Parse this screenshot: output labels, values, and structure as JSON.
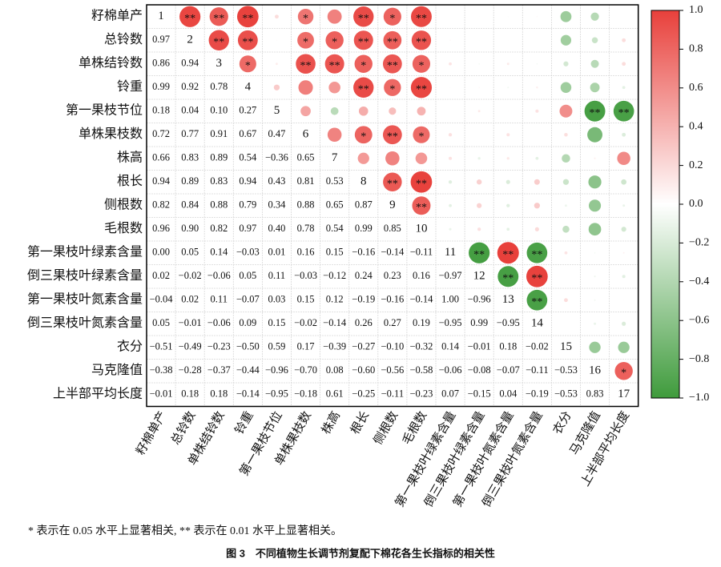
{
  "chart_data": {
    "type": "corrplot",
    "labels": [
      "籽棉单产",
      "总铃数",
      "单株结铃数",
      "铃重",
      "第一果枝节位",
      "单株果枝数",
      "株高",
      "根长",
      "侧根数",
      "毛根数",
      "第一果枝叶绿素含量",
      "倒三果枝叶绿素含量",
      "第一果枝叶氮素含量",
      "倒三果枝叶氮素含量",
      "衣分",
      "马克隆值",
      "上半部平均长度"
    ],
    "diagonal_labels": [
      1,
      2,
      3,
      4,
      5,
      6,
      7,
      8,
      9,
      10,
      11,
      12,
      13,
      14,
      15,
      16,
      17
    ],
    "values": [
      [
        0.97
      ],
      [
        0.86,
        0.94
      ],
      [
        0.99,
        0.92,
        0.78
      ],
      [
        0.18,
        0.04,
        0.1,
        0.27
      ],
      [
        0.72,
        0.77,
        0.91,
        0.67,
        0.47
      ],
      [
        0.66,
        0.83,
        0.89,
        0.54,
        -0.36,
        0.65
      ],
      [
        0.94,
        0.89,
        0.83,
        0.94,
        0.43,
        0.81,
        0.53
      ],
      [
        0.82,
        0.84,
        0.88,
        0.79,
        0.34,
        0.88,
        0.65,
        0.87
      ],
      [
        0.96,
        0.9,
        0.82,
        0.97,
        0.4,
        0.78,
        0.54,
        0.99,
        0.85
      ],
      [
        0.0,
        0.05,
        0.14,
        -0.03,
        0.01,
        0.16,
        0.15,
        -0.16,
        -0.14,
        -0.11
      ],
      [
        0.02,
        -0.02,
        -0.06,
        0.05,
        0.11,
        -0.03,
        -0.12,
        0.24,
        0.23,
        0.16,
        -0.97
      ],
      [
        -0.04,
        0.02,
        0.11,
        -0.07,
        0.03,
        0.15,
        0.12,
        -0.19,
        -0.16,
        -0.14,
        1.0,
        -0.96
      ],
      [
        0.05,
        -0.01,
        -0.06,
        0.09,
        0.15,
        -0.02,
        -0.14,
        0.26,
        0.27,
        0.19,
        -0.95,
        0.99,
        -0.95
      ],
      [
        -0.51,
        -0.49,
        -0.23,
        -0.5,
        0.59,
        0.17,
        -0.39,
        -0.27,
        -0.1,
        -0.32,
        0.14,
        -0.01,
        0.18,
        -0.02
      ],
      [
        -0.38,
        -0.28,
        -0.37,
        -0.44,
        -0.96,
        -0.7,
        0.08,
        -0.6,
        -0.56,
        -0.58,
        -0.06,
        -0.08,
        -0.07,
        -0.11,
        -0.53
      ],
      [
        -0.01,
        0.18,
        0.18,
        -0.14,
        -0.95,
        -0.18,
        0.61,
        -0.25,
        -0.11,
        -0.23,
        0.07,
        -0.15,
        0.04,
        -0.19,
        -0.53,
        0.83
      ]
    ],
    "value_labels": [
      [
        "0.97"
      ],
      [
        "0.86",
        "0.94"
      ],
      [
        "0.99",
        "0.92",
        "0.78"
      ],
      [
        "0.18",
        "0.04",
        "0.10",
        "0.27"
      ],
      [
        "0.72",
        "0.77",
        "0.91",
        "0.67",
        "0.47"
      ],
      [
        "0.66",
        "0.83",
        "0.89",
        "0.54",
        "−0.36",
        "0.65"
      ],
      [
        "0.94",
        "0.89",
        "0.83",
        "0.94",
        "0.43",
        "0.81",
        "0.53"
      ],
      [
        "0.82",
        "0.84",
        "0.88",
        "0.79",
        "0.34",
        "0.88",
        "0.65",
        "0.87"
      ],
      [
        "0.96",
        "0.90",
        "0.82",
        "0.97",
        "0.40",
        "0.78",
        "0.54",
        "0.99",
        "0.85"
      ],
      [
        "0.00",
        "0.05",
        "0.14",
        "−0.03",
        "0.01",
        "0.16",
        "0.15",
        "−0.16",
        "−0.14",
        "−0.11"
      ],
      [
        "0.02",
        "−0.02",
        "−0.06",
        "0.05",
        "0.11",
        "−0.03",
        "−0.12",
        "0.24",
        "0.23",
        "0.16",
        "−0.97"
      ],
      [
        "−0.04",
        "0.02",
        "0.11",
        "−0.07",
        "0.03",
        "0.15",
        "0.12",
        "−0.19",
        "−0.16",
        "−0.14",
        "1.00",
        "−0.96"
      ],
      [
        "0.05",
        "−0.01",
        "−0.06",
        "0.09",
        "0.15",
        "−0.02",
        "−0.14",
        "0.26",
        "0.27",
        "0.19",
        "−0.95",
        "0.99",
        "−0.95"
      ],
      [
        "−0.51",
        "−0.49",
        "−0.23",
        "−0.50",
        "0.59",
        "0.17",
        "−0.39",
        "−0.27",
        "−0.10",
        "−0.32",
        "0.14",
        "−0.01",
        "0.18",
        "−0.02"
      ],
      [
        "−0.38",
        "−0.28",
        "−0.37",
        "−0.44",
        "−0.96",
        "−0.70",
        "0.08",
        "−0.60",
        "−0.56",
        "−0.58",
        "−0.06",
        "−0.08",
        "−0.07",
        "−0.11",
        "−0.53"
      ],
      [
        "−0.01",
        "0.18",
        "0.18",
        "−0.14",
        "−0.95",
        "−0.18",
        "0.61",
        "−0.25",
        "−0.11",
        "−0.23",
        "0.07",
        "−0.15",
        "0.04",
        "−0.19",
        "−0.53",
        "0.83"
      ]
    ],
    "significance": [
      [
        "**",
        "**",
        "**",
        null,
        "*",
        null,
        "**",
        "*",
        "**",
        null,
        null,
        null,
        null,
        null,
        null,
        null
      ],
      [
        "**",
        "**",
        null,
        "*",
        "*",
        "**",
        "**",
        "**",
        null,
        null,
        null,
        null,
        null,
        null,
        null
      ],
      [
        "*",
        null,
        "**",
        "**",
        "*",
        "**",
        "*",
        null,
        null,
        null,
        null,
        null,
        null,
        null
      ],
      [
        null,
        null,
        null,
        "**",
        "*",
        "**",
        null,
        null,
        null,
        null,
        null,
        null,
        null
      ],
      [
        null,
        null,
        null,
        null,
        null,
        null,
        null,
        null,
        null,
        null,
        "**",
        "**"
      ],
      [
        null,
        "*",
        "**",
        "*",
        null,
        null,
        null,
        null,
        null,
        null,
        null
      ],
      [
        null,
        null,
        null,
        null,
        null,
        null,
        null,
        null,
        null,
        null
      ],
      [
        "**",
        "**",
        null,
        null,
        null,
        null,
        null,
        null,
        null
      ],
      [
        "**",
        null,
        null,
        null,
        null,
        null,
        null,
        null
      ],
      [
        null,
        null,
        null,
        null,
        null,
        null,
        null
      ],
      [
        "**",
        "**",
        "**",
        null,
        null,
        null
      ],
      [
        "**",
        "**",
        null,
        null,
        null
      ],
      [
        "**",
        null,
        null,
        null
      ],
      [
        null,
        null,
        null
      ],
      [
        null,
        null
      ],
      [
        "*"
      ]
    ],
    "colors": {
      "positive": "#e8403b",
      "zero": "#ffffff",
      "negative": "#3f9b3c"
    },
    "colorbar_lim": [
      -1,
      1
    ],
    "colorbar_ticks": [
      {
        "value": 1,
        "label": "1.0"
      },
      {
        "value": 0.8,
        "label": "0.8"
      },
      {
        "value": 0.6,
        "label": "0.6"
      },
      {
        "value": 0.4,
        "label": "0.4"
      },
      {
        "value": 0.2,
        "label": "0.2"
      },
      {
        "value": 0,
        "label": "0.0"
      },
      {
        "value": -0.2,
        "label": "−0.2"
      },
      {
        "value": -0.4,
        "label": "−0.4"
      },
      {
        "value": -0.6,
        "label": "−0.6"
      },
      {
        "value": -0.8,
        "label": "−0.8"
      },
      {
        "value": -1,
        "label": "−1.0"
      }
    ],
    "footnote": "* 表示在 0.05 水平上显著相关, ** 表示在 0.01 水平上显著相关。",
    "caption": "图 3　不同植物生长调节剂复配下棉花各生长指标的相关性"
  }
}
